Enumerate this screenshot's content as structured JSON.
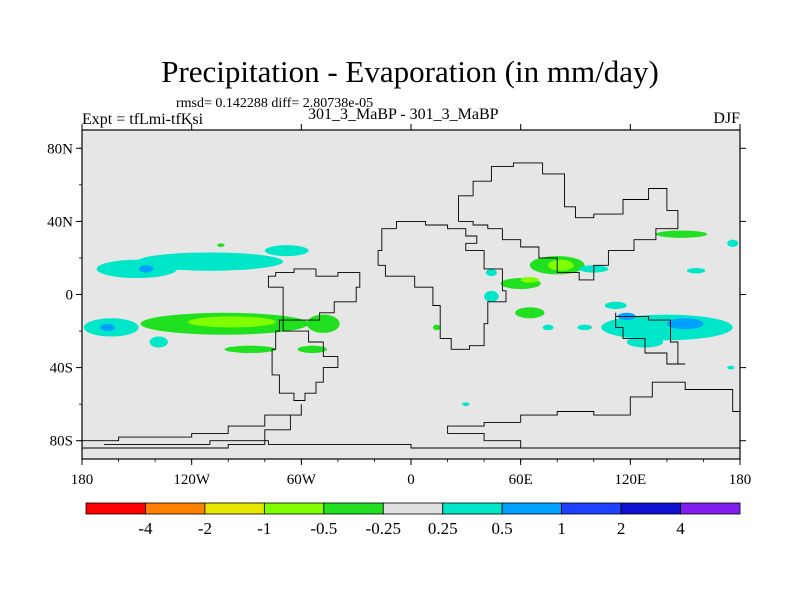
{
  "chart_data": {
    "type": "heatmap",
    "title": "Precipitation - Evaporation (in mm/day)",
    "stats_text": "rmsd= 0.142288 diff= 2.80738e-05",
    "left_label": "Expt = tfLmi-tfKsi",
    "center_label": "301_3_MaBP - 301_3_MaBP",
    "right_label": "DJF",
    "x_range": [
      -180,
      180
    ],
    "y_range": [
      -90,
      90
    ],
    "x_ticks": [
      {
        "value": -180,
        "label": "180"
      },
      {
        "value": -120,
        "label": "120W"
      },
      {
        "value": -60,
        "label": "60W"
      },
      {
        "value": 0,
        "label": "0"
      },
      {
        "value": 60,
        "label": "60E"
      },
      {
        "value": 120,
        "label": "120E"
      },
      {
        "value": 180,
        "label": "180"
      }
    ],
    "y_ticks": [
      {
        "value": 80,
        "label": "80N"
      },
      {
        "value": 40,
        "label": "40N"
      },
      {
        "value": 0,
        "label": "0"
      },
      {
        "value": -40,
        "label": "40S"
      },
      {
        "value": -80,
        "label": "80S"
      }
    ],
    "colorbar": {
      "colors": [
        "#ff0000",
        "#ff8000",
        "#e6e600",
        "#80ff00",
        "#20e020",
        "#e0e0e0",
        "#00e6c8",
        "#00a0ff",
        "#2040ff",
        "#1010d0",
        "#8020f0"
      ],
      "labels": [
        "-4",
        "-2",
        "-1",
        "-0.5",
        "-0.25",
        "0.25",
        "0.5",
        "1",
        "2",
        "4"
      ]
    },
    "background_color": "#e6e6e6",
    "outline": [
      [
        [
          -52,
          14
        ],
        [
          -40,
          10
        ],
        [
          -28,
          12
        ],
        [
          -30,
          4
        ],
        [
          -42,
          -4
        ],
        [
          -50,
          -10
        ],
        [
          -60,
          -14
        ],
        [
          -70,
          -14
        ],
        [
          -70,
          -4
        ],
        [
          -78,
          4
        ],
        [
          -74,
          10
        ],
        [
          -64,
          12
        ],
        [
          -52,
          14
        ]
      ],
      [
        [
          -70,
          -14
        ],
        [
          -56,
          -20
        ],
        [
          -48,
          -26
        ],
        [
          -40,
          -34
        ],
        [
          -48,
          -40
        ],
        [
          -52,
          -48
        ],
        [
          -58,
          -54
        ],
        [
          -64,
          -58
        ],
        [
          -72,
          -54
        ],
        [
          -76,
          -44
        ],
        [
          -74,
          -30
        ],
        [
          -72,
          -20
        ],
        [
          -70,
          -14
        ]
      ],
      [
        [
          -60,
          -60
        ],
        [
          -80,
          -66
        ],
        [
          -100,
          -72
        ],
        [
          -120,
          -76
        ],
        [
          -140,
          -78
        ],
        [
          -160,
          -78
        ],
        [
          -180,
          -80
        ],
        [
          -180,
          -84
        ],
        [
          -100,
          -84
        ],
        [
          -80,
          -82
        ],
        [
          -66,
          -74
        ],
        [
          -60,
          -66
        ],
        [
          -60,
          -60
        ]
      ],
      [
        [
          -8,
          36
        ],
        [
          0,
          40
        ],
        [
          8,
          40
        ],
        [
          20,
          38
        ],
        [
          30,
          36
        ],
        [
          36,
          32
        ],
        [
          30,
          28
        ],
        [
          40,
          24
        ],
        [
          50,
          14
        ],
        [
          52,
          2
        ],
        [
          42,
          -4
        ],
        [
          40,
          -16
        ],
        [
          32,
          -28
        ],
        [
          22,
          -30
        ],
        [
          16,
          -24
        ],
        [
          12,
          -6
        ],
        [
          2,
          4
        ],
        [
          -14,
          10
        ],
        [
          -18,
          16
        ],
        [
          -16,
          24
        ],
        [
          -8,
          36
        ]
      ],
      [
        [
          26,
          40
        ],
        [
          34,
          54
        ],
        [
          44,
          62
        ],
        [
          56,
          70
        ],
        [
          72,
          72
        ],
        [
          84,
          66
        ],
        [
          90,
          48
        ],
        [
          100,
          42
        ],
        [
          116,
          44
        ],
        [
          130,
          52
        ],
        [
          140,
          58
        ],
        [
          146,
          46
        ],
        [
          134,
          36
        ],
        [
          122,
          30
        ],
        [
          108,
          24
        ],
        [
          100,
          16
        ],
        [
          92,
          8
        ],
        [
          80,
          12
        ],
        [
          70,
          20
        ],
        [
          60,
          26
        ],
        [
          50,
          30
        ],
        [
          42,
          36
        ],
        [
          34,
          38
        ],
        [
          26,
          40
        ]
      ],
      [
        [
          112,
          -10
        ],
        [
          130,
          -12
        ],
        [
          142,
          -14
        ],
        [
          146,
          -26
        ],
        [
          150,
          -38
        ],
        [
          140,
          -38
        ],
        [
          128,
          -32
        ],
        [
          116,
          -24
        ],
        [
          112,
          -18
        ],
        [
          112,
          -10
        ]
      ],
      [
        [
          60,
          -70
        ],
        [
          80,
          -66
        ],
        [
          100,
          -64
        ],
        [
          120,
          -66
        ],
        [
          132,
          -56
        ],
        [
          150,
          -48
        ],
        [
          176,
          -52
        ],
        [
          180,
          -64
        ],
        [
          180,
          -84
        ],
        [
          60,
          -84
        ],
        [
          40,
          -80
        ],
        [
          20,
          -76
        ],
        [
          40,
          -72
        ],
        [
          60,
          -70
        ]
      ],
      [
        [
          -168,
          -82
        ],
        [
          -110,
          -82
        ],
        [
          -78,
          -80
        ],
        [
          -40,
          -82
        ],
        [
          0,
          -82
        ],
        [
          60,
          -84
        ],
        [
          180,
          -84
        ]
      ]
    ],
    "anomalies": [
      {
        "lon": -150,
        "lat": 14,
        "rx": 22,
        "ry": 5,
        "level": "0.25"
      },
      {
        "lon": -110,
        "lat": 18,
        "rx": 40,
        "ry": 5,
        "level": "0.25"
      },
      {
        "lon": -68,
        "lat": 24,
        "rx": 12,
        "ry": 3,
        "level": "0.25"
      },
      {
        "lon": -145,
        "lat": 14,
        "rx": 4,
        "ry": 2,
        "level": "0.5"
      },
      {
        "lon": -102,
        "lat": -16,
        "rx": 46,
        "ry": 6,
        "level": "-0.25"
      },
      {
        "lon": -98,
        "lat": -15,
        "rx": 24,
        "ry": 3,
        "level": "-0.5"
      },
      {
        "lon": -48,
        "lat": -16,
        "rx": 9,
        "ry": 5,
        "level": "-0.25"
      },
      {
        "lon": -164,
        "lat": -18,
        "rx": 15,
        "ry": 5,
        "level": "0.25"
      },
      {
        "lon": -166,
        "lat": -18,
        "rx": 4,
        "ry": 2,
        "level": "0.5"
      },
      {
        "lon": -138,
        "lat": -26,
        "rx": 5,
        "ry": 3,
        "level": "0.25"
      },
      {
        "lon": -88,
        "lat": -30,
        "rx": 14,
        "ry": 2,
        "level": "-0.25"
      },
      {
        "lon": -54,
        "lat": -30,
        "rx": 8,
        "ry": 2,
        "level": "-0.25"
      },
      {
        "lon": 80,
        "lat": 16,
        "rx": 15,
        "ry": 5,
        "level": "-0.25"
      },
      {
        "lon": 82,
        "lat": 16,
        "rx": 7,
        "ry": 3,
        "level": "-0.5"
      },
      {
        "lon": 60,
        "lat": 6,
        "rx": 11,
        "ry": 3,
        "level": "-0.25"
      },
      {
        "lon": 65,
        "lat": 8,
        "rx": 5,
        "ry": 1.6,
        "level": "-0.5"
      },
      {
        "lon": 65,
        "lat": -10,
        "rx": 8,
        "ry": 3,
        "level": "-0.25"
      },
      {
        "lon": 44,
        "lat": 12,
        "rx": 3,
        "ry": 2,
        "level": "0.25"
      },
      {
        "lon": 44,
        "lat": -1,
        "rx": 4,
        "ry": 3,
        "level": "0.25"
      },
      {
        "lon": 140,
        "lat": -18,
        "rx": 36,
        "ry": 7,
        "level": "0.25"
      },
      {
        "lon": 150,
        "lat": -16,
        "rx": 10,
        "ry": 3,
        "level": "0.5"
      },
      {
        "lon": 118,
        "lat": -12,
        "rx": 5,
        "ry": 2,
        "level": "0.5"
      },
      {
        "lon": 128,
        "lat": -26,
        "rx": 10,
        "ry": 3,
        "level": "0.25"
      },
      {
        "lon": 112,
        "lat": -6,
        "rx": 6,
        "ry": 2,
        "level": "0.25"
      },
      {
        "lon": 176,
        "lat": 28,
        "rx": 3,
        "ry": 2,
        "level": "0.25"
      },
      {
        "lon": 148,
        "lat": 33,
        "rx": 14,
        "ry": 2,
        "level": "-0.25"
      },
      {
        "lon": 100,
        "lat": 14,
        "rx": 8,
        "ry": 2,
        "level": "0.25"
      },
      {
        "lon": 156,
        "lat": 13,
        "rx": 5,
        "ry": 1.5,
        "level": "0.25"
      },
      {
        "lon": 95,
        "lat": -18,
        "rx": 4,
        "ry": 1.5,
        "level": "0.25"
      },
      {
        "lon": 75,
        "lat": -18,
        "rx": 3,
        "ry": 1.5,
        "level": "0.25"
      },
      {
        "lon": 14,
        "lat": -18,
        "rx": 2,
        "ry": 1.5,
        "level": "-0.25"
      },
      {
        "lon": -104,
        "lat": 27,
        "rx": 2,
        "ry": 1,
        "level": "-0.25"
      },
      {
        "lon": 30,
        "lat": -60,
        "rx": 2,
        "ry": 1,
        "level": "0.25"
      },
      {
        "lon": 175,
        "lat": -40,
        "rx": 2,
        "ry": 1,
        "level": "0.25"
      }
    ]
  }
}
